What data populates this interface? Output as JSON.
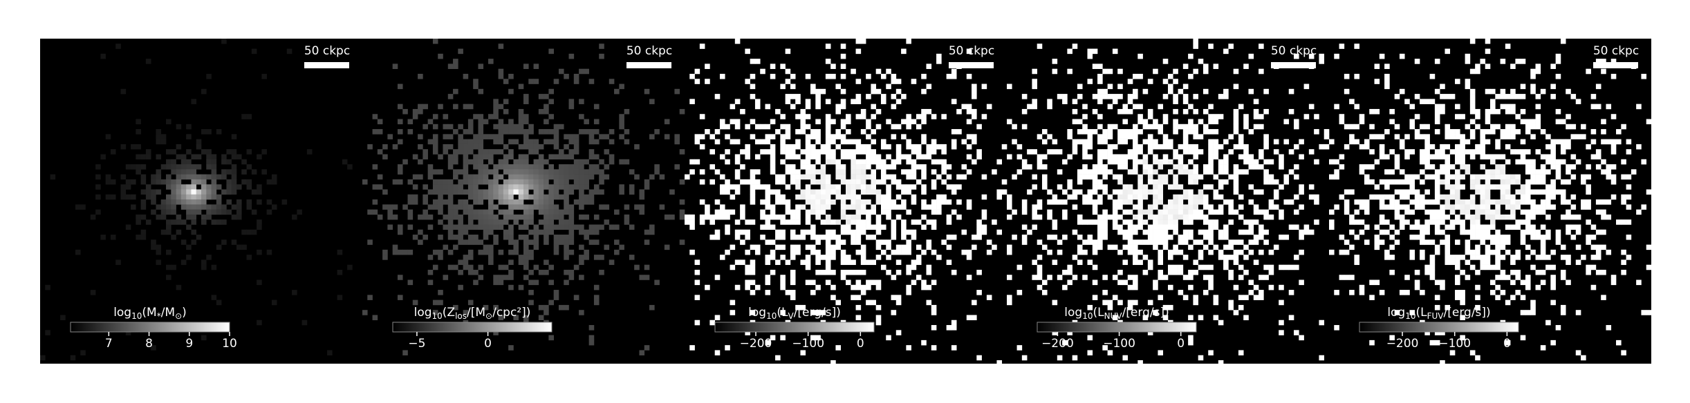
{
  "chart_data": [
    {
      "type": "image",
      "scalebar": "50 ckpc",
      "colorbar_label": [
        "log",
        "10",
        "(M",
        "*",
        "/M",
        "⊙",
        ")"
      ],
      "clim": [
        6.05,
        10
      ],
      "cticks": [
        7,
        8,
        9,
        10
      ]
    },
    {
      "type": "image",
      "scalebar": "50 ckpc",
      "colorbar_label": [
        "log",
        "10",
        "(Z",
        "los",
        "/[M",
        "⊙",
        "/cpc²])"
      ],
      "clim": [
        -6.7,
        4.5
      ],
      "cticks": [
        {
          "value": -5,
          "label": "−5"
        },
        0
      ]
    },
    {
      "type": "image",
      "scalebar": "50 ckpc",
      "colorbar_label": [
        "log",
        "10",
        "(L",
        "V",
        "/[erg/s])"
      ],
      "clim": [
        -278,
        26
      ],
      "cticks": [
        {
          "value": -200,
          "label": "−200"
        },
        {
          "value": -100,
          "label": "−100"
        },
        0
      ]
    },
    {
      "type": "image",
      "scalebar": "50 ckpc",
      "colorbar_label": [
        "log",
        "10",
        "(L",
        "NUV",
        "/[erg/s])"
      ],
      "clim": [
        -233,
        25
      ],
      "cticks": [
        {
          "value": -200,
          "label": "−200"
        },
        {
          "value": -100,
          "label": "−100"
        },
        0
      ]
    },
    {
      "type": "image",
      "scalebar": "50 ckpc",
      "colorbar_label": [
        "log",
        "10",
        "(L",
        "FUV",
        "/[erg/s])"
      ],
      "clim": [
        -282,
        22
      ],
      "cticks": [
        {
          "value": -200,
          "label": "−200"
        },
        {
          "value": -100,
          "label": "−100"
        },
        0
      ]
    }
  ]
}
